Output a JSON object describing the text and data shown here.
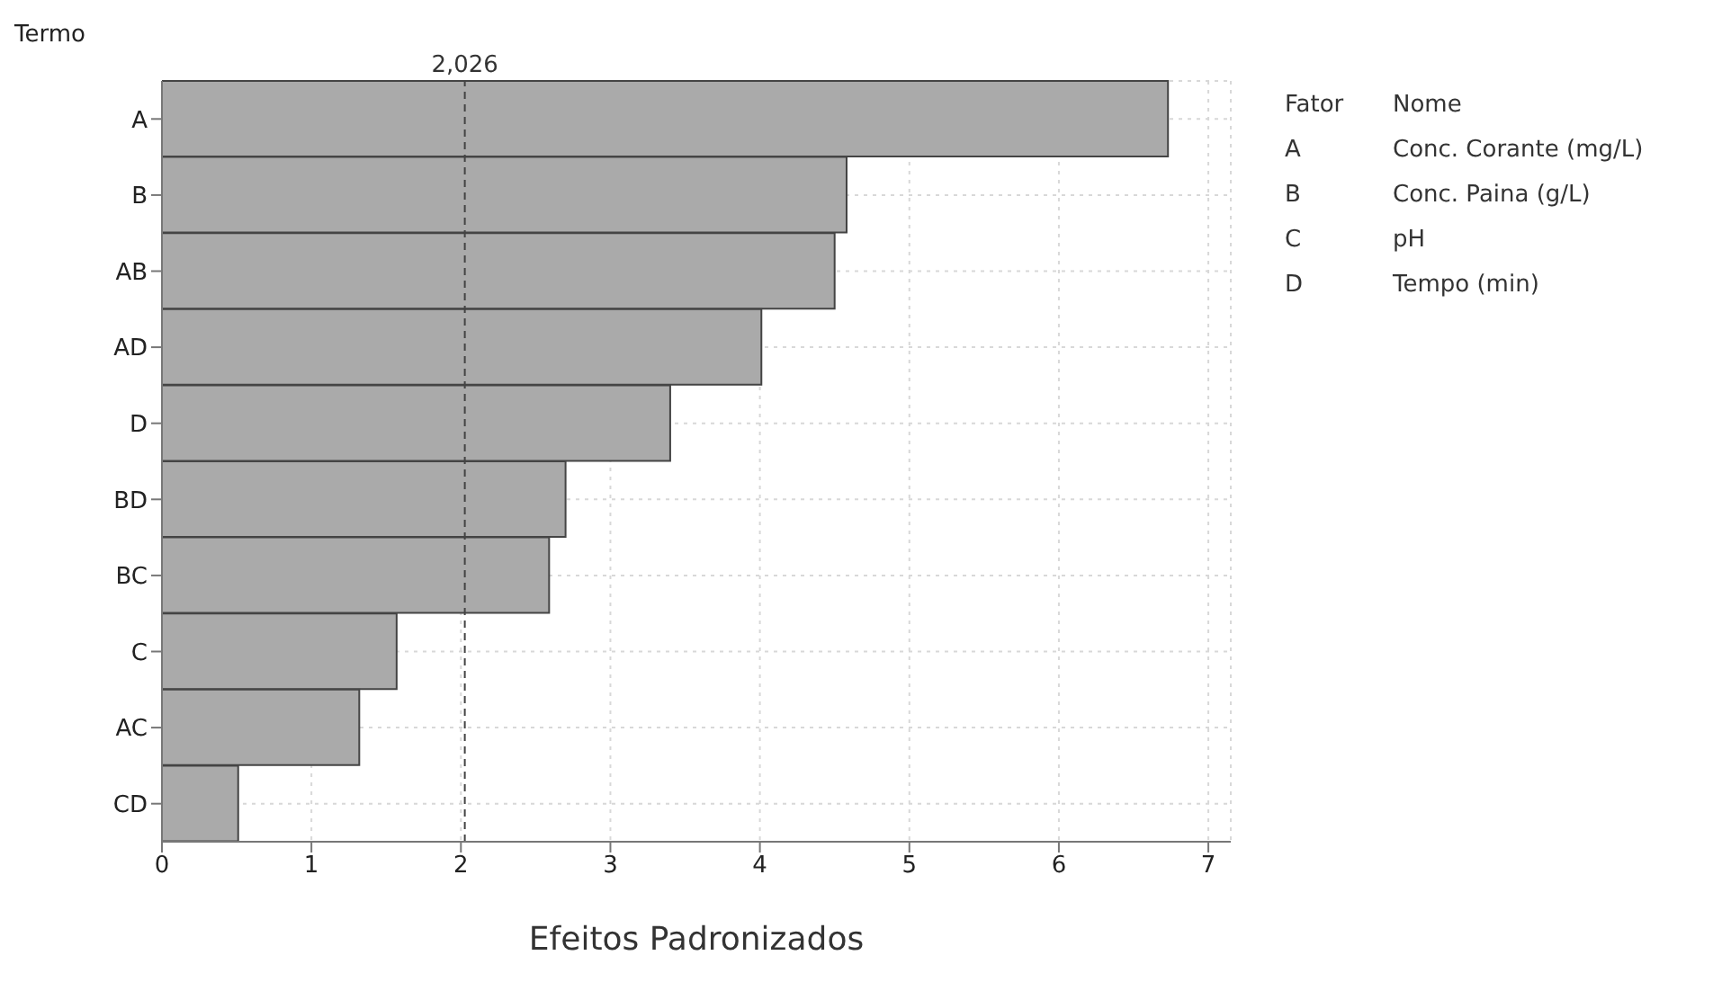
{
  "chart_data": {
    "type": "bar",
    "orientation": "horizontal",
    "ylabel": "Termo",
    "xlabel": "Efeitos Padronizados",
    "categories": [
      "A",
      "B",
      "AB",
      "AD",
      "D",
      "BD",
      "BC",
      "C",
      "AC",
      "CD"
    ],
    "values": [
      6.73,
      4.58,
      4.5,
      4.01,
      3.4,
      2.7,
      2.59,
      1.57,
      1.32,
      0.51
    ],
    "color": "#aaaaaa",
    "xlim": [
      0,
      7.15
    ],
    "xticks": [
      0,
      1,
      2,
      3,
      4,
      5,
      6,
      7
    ],
    "grid": true,
    "ref_lines": [
      {
        "axis": "x",
        "value": 2.026,
        "label": "2,026",
        "line_style": "dashed"
      }
    ],
    "annotations": [
      "Fator",
      "Nome",
      "A",
      "Conc. Corante (mg/L)",
      "B",
      "Conc. Paina (g/L)",
      "C",
      "pH",
      "D",
      "Tempo (min)"
    ]
  }
}
